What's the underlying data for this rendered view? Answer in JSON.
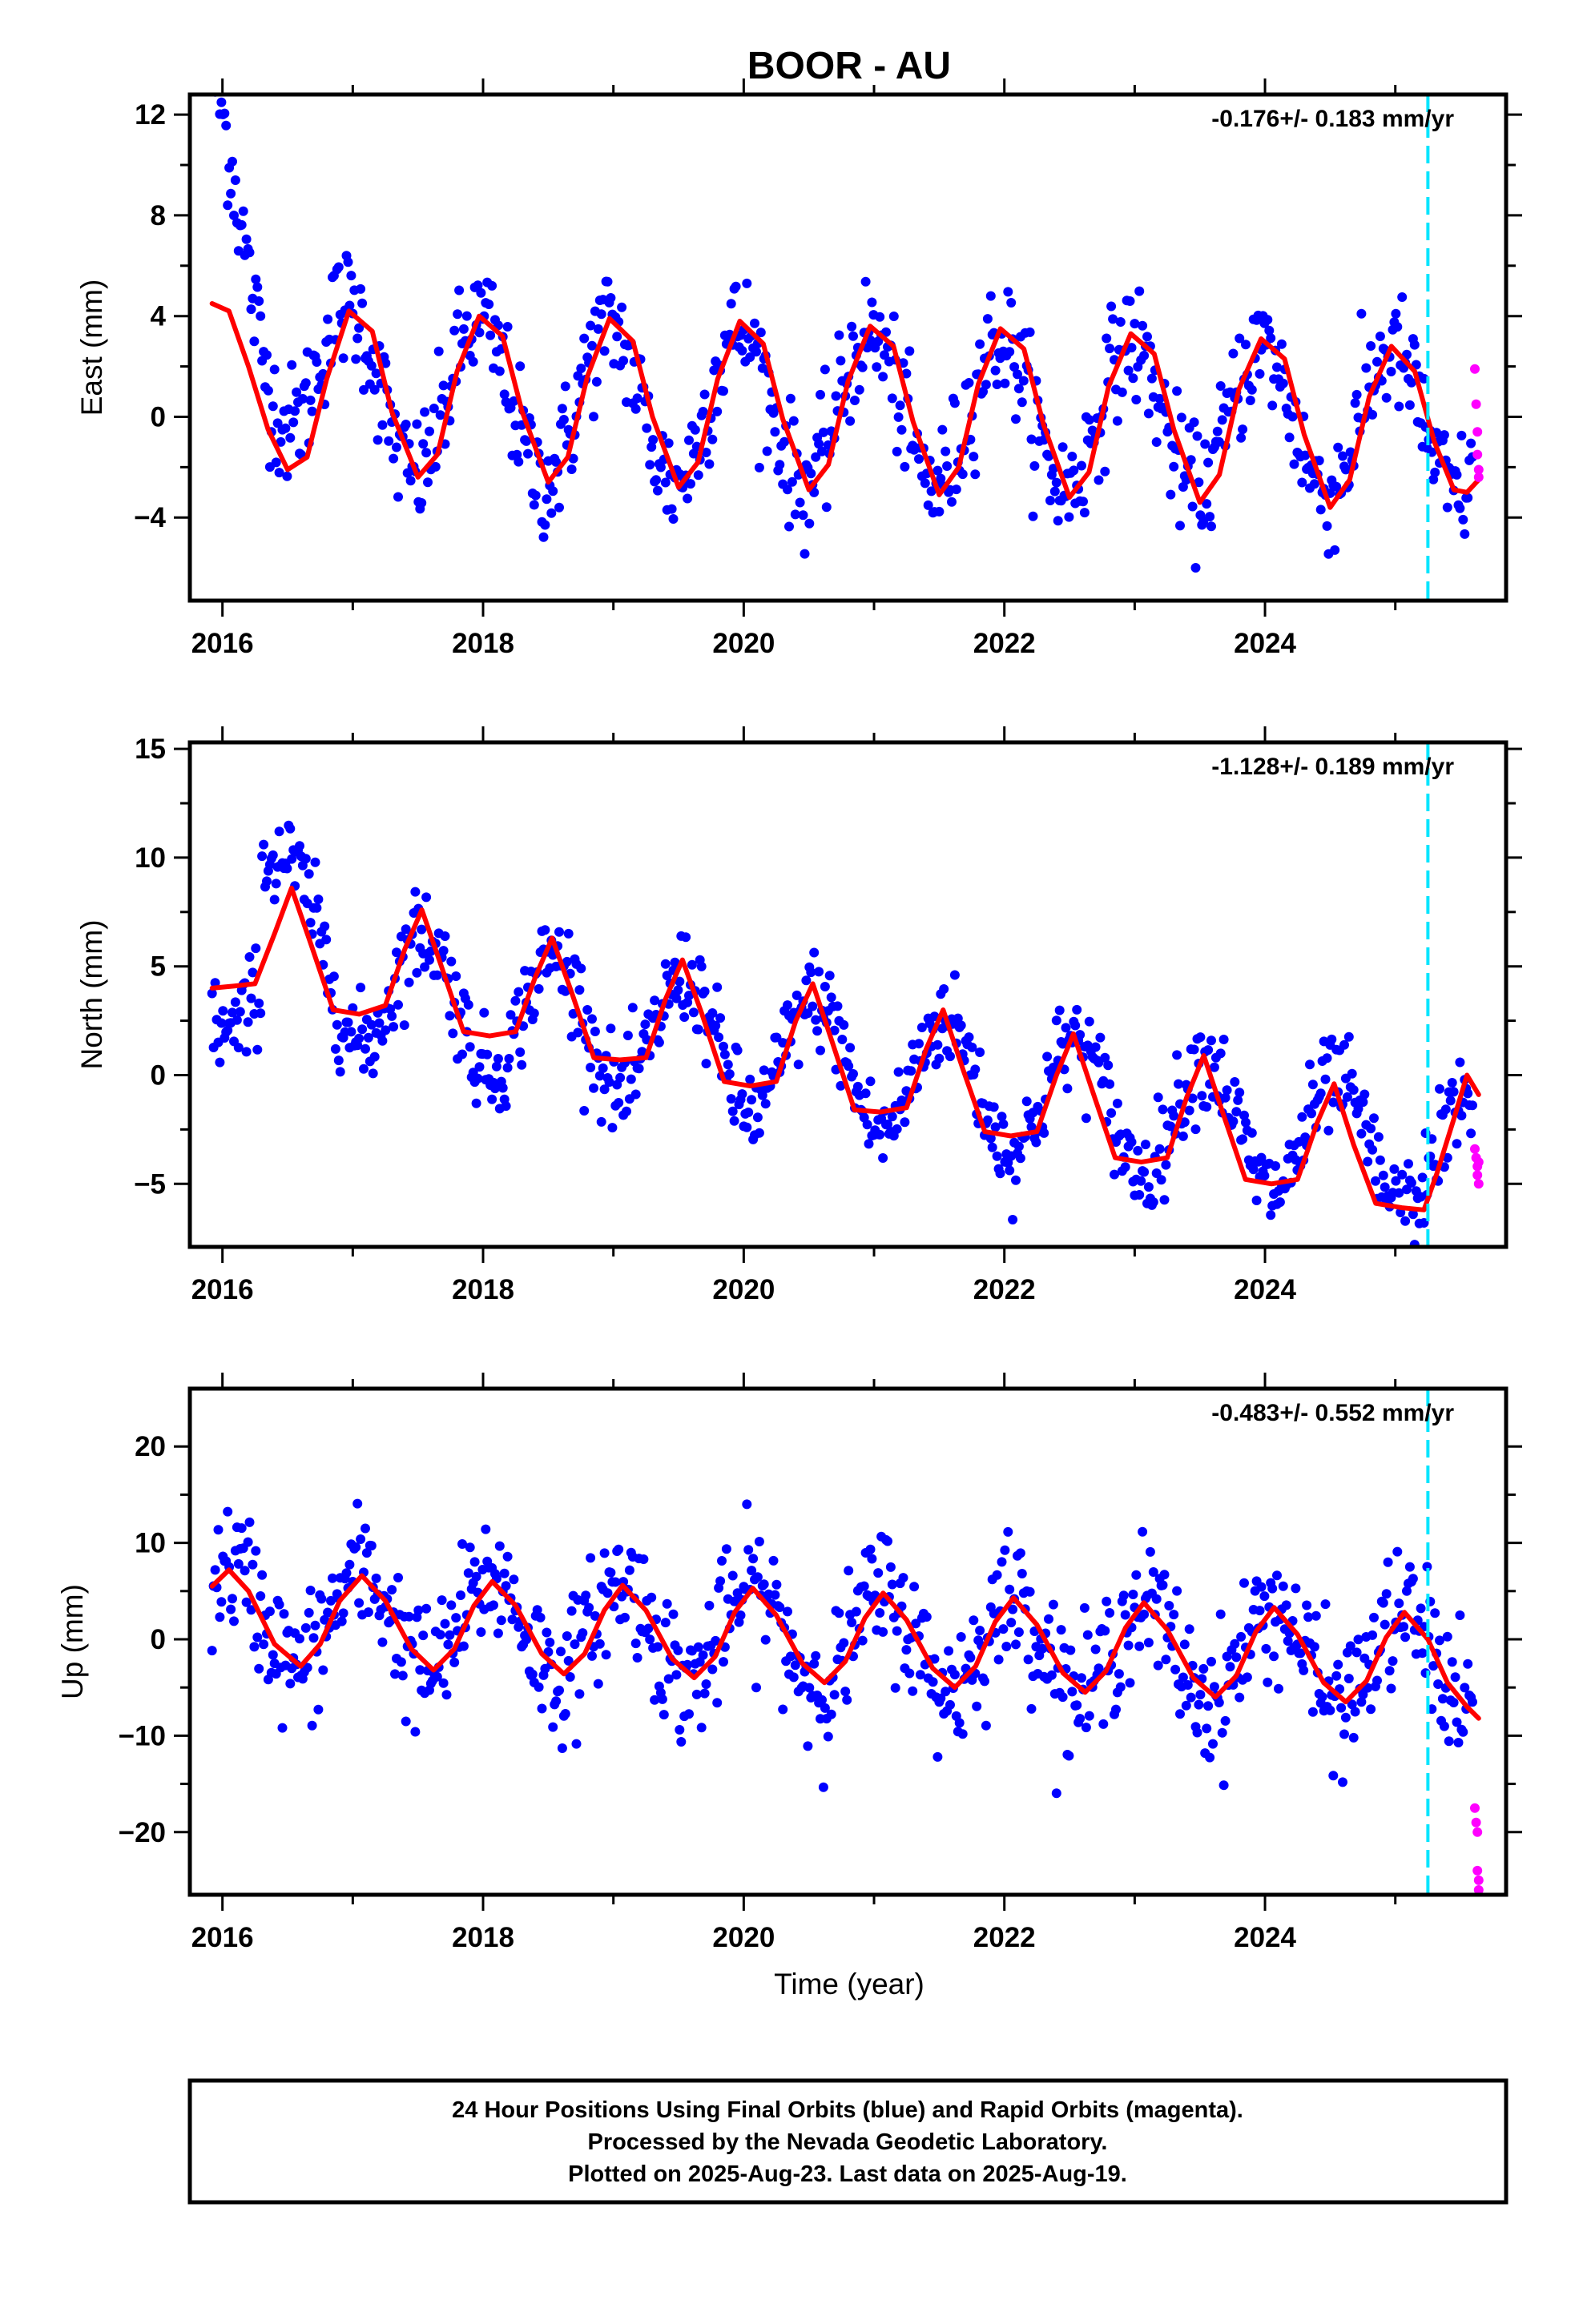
{
  "title": "BOOR - AU",
  "xlabel": "Time (year)",
  "footer": {
    "line1": "24 Hour Positions Using Final Orbits (blue) and Rapid Orbits (magenta).",
    "line2": "Processed by the Nevada Geodetic Laboratory.",
    "line3": "Plotted on 2025-Aug-23. Last data on 2025-Aug-19."
  },
  "colors": {
    "final_orbits": "#0000ff",
    "rapid_orbits": "#ff00ff",
    "model_fit": "#ff0000",
    "marker_line": "#00e5ff",
    "frame": "#000000"
  },
  "chart_data": [
    {
      "type": "scatter",
      "component": "East",
      "ylabel": "East (mm)",
      "rate_label": "-0.176+/- 0.183 mm/yr",
      "xlim": [
        2015.75,
        2025.85
      ],
      "ylim": [
        -7.3,
        12.8
      ],
      "xticks": [
        2016,
        2018,
        2020,
        2022,
        2024
      ],
      "yticks": [
        -4,
        0,
        4,
        8,
        12
      ],
      "grid": false,
      "vertical_marker_x": 2025.25,
      "series": [
        {
          "name": "Final Orbits",
          "seasonal": {
            "amp_start": 3.2,
            "amp_end": 2.8,
            "phase": 0.97,
            "offset_start": 0.9,
            "offset_end": -0.3,
            "noise": 1.2,
            "step": 0.012,
            "start": 2015.92,
            "end": 2025.6
          },
          "early_transient": {
            "start": 2015.92,
            "value": 10.0,
            "decay": 0.35
          }
        },
        {
          "name": "Rapid Orbits",
          "points": [
            [
              2025.61,
              1.9
            ],
            [
              2025.62,
              0.5
            ],
            [
              2025.63,
              -0.6
            ],
            [
              2025.63,
              -1.5
            ],
            [
              2025.64,
              -2.1
            ],
            [
              2025.64,
              -2.4
            ]
          ]
        },
        {
          "name": "Model Fit",
          "points": [
            [
              2015.92,
              4.5
            ],
            [
              2016.05,
              4.2
            ],
            [
              2016.2,
              2.0
            ],
            [
              2016.35,
              -0.5
            ],
            [
              2016.5,
              -2.1
            ],
            [
              2016.65,
              -1.6
            ],
            [
              2016.8,
              1.5
            ],
            [
              2016.97,
              4.2
            ],
            [
              2017.15,
              3.4
            ],
            [
              2017.3,
              0.2
            ],
            [
              2017.5,
              -2.4
            ],
            [
              2017.65,
              -1.5
            ],
            [
              2017.8,
              1.8
            ],
            [
              2017.97,
              4.0
            ],
            [
              2018.15,
              3.2
            ],
            [
              2018.3,
              0.2
            ],
            [
              2018.5,
              -2.6
            ],
            [
              2018.65,
              -1.6
            ],
            [
              2018.8,
              1.6
            ],
            [
              2018.97,
              3.9
            ],
            [
              2019.15,
              3.0
            ],
            [
              2019.3,
              0.0
            ],
            [
              2019.5,
              -2.8
            ],
            [
              2019.65,
              -1.8
            ],
            [
              2019.8,
              1.5
            ],
            [
              2019.97,
              3.8
            ],
            [
              2020.15,
              2.9
            ],
            [
              2020.3,
              -0.1
            ],
            [
              2020.5,
              -2.9
            ],
            [
              2020.65,
              -1.9
            ],
            [
              2020.8,
              1.4
            ],
            [
              2020.97,
              3.6
            ],
            [
              2021.15,
              2.8
            ],
            [
              2021.3,
              -0.2
            ],
            [
              2021.5,
              -3.1
            ],
            [
              2021.65,
              -2.0
            ],
            [
              2021.8,
              1.3
            ],
            [
              2021.97,
              3.5
            ],
            [
              2022.15,
              2.7
            ],
            [
              2022.3,
              -0.3
            ],
            [
              2022.5,
              -3.2
            ],
            [
              2022.65,
              -2.2
            ],
            [
              2022.8,
              1.2
            ],
            [
              2022.97,
              3.3
            ],
            [
              2023.15,
              2.5
            ],
            [
              2023.3,
              -0.5
            ],
            [
              2023.5,
              -3.4
            ],
            [
              2023.65,
              -2.3
            ],
            [
              2023.8,
              1.1
            ],
            [
              2023.97,
              3.1
            ],
            [
              2024.15,
              2.3
            ],
            [
              2024.3,
              -0.7
            ],
            [
              2024.5,
              -3.6
            ],
            [
              2024.65,
              -2.5
            ],
            [
              2024.8,
              0.8
            ],
            [
              2024.97,
              2.8
            ],
            [
              2025.15,
              1.8
            ],
            [
              2025.3,
              -1.0
            ],
            [
              2025.45,
              -2.9
            ],
            [
              2025.55,
              -3.0
            ],
            [
              2025.64,
              -2.5
            ]
          ]
        }
      ]
    },
    {
      "type": "scatter",
      "component": "North",
      "ylabel": "North (mm)",
      "rate_label": "-1.128+/- 0.189 mm/yr",
      "xlim": [
        2015.75,
        2025.85
      ],
      "ylim": [
        -7.9,
        15.3
      ],
      "xticks": [
        2016,
        2018,
        2020,
        2022,
        2024
      ],
      "yticks": [
        -5,
        0,
        5,
        10,
        15
      ],
      "grid": false,
      "vertical_marker_x": 2025.25,
      "series": [
        {
          "name": "Final Orbits",
          "seasonal": {
            "amp_start": 3.0,
            "amp_end": 2.7,
            "phase": 0.55,
            "offset_start": 5.0,
            "offset_end": -4.0,
            "noise": 1.1,
            "step": 0.012,
            "start": 2015.92,
            "end": 2025.6
          },
          "early_transient": {
            "start": 2016.3,
            "value": 5.0,
            "decay": 0.3
          }
        },
        {
          "name": "Rapid Orbits",
          "points": [
            [
              2025.61,
              -3.4
            ],
            [
              2025.62,
              -3.8
            ],
            [
              2025.63,
              -4.2
            ],
            [
              2025.63,
              -4.6
            ],
            [
              2025.64,
              -5.0
            ],
            [
              2025.64,
              -4.0
            ]
          ]
        },
        {
          "name": "Model Fit",
          "points": [
            [
              2015.92,
              4.0
            ],
            [
              2016.1,
              4.1
            ],
            [
              2016.25,
              4.2
            ],
            [
              2016.4,
              6.5
            ],
            [
              2016.53,
              8.6
            ],
            [
              2016.68,
              6.0
            ],
            [
              2016.85,
              3.0
            ],
            [
              2017.05,
              2.8
            ],
            [
              2017.25,
              3.2
            ],
            [
              2017.4,
              5.8
            ],
            [
              2017.53,
              7.6
            ],
            [
              2017.68,
              5.0
            ],
            [
              2017.85,
              2.0
            ],
            [
              2018.05,
              1.8
            ],
            [
              2018.25,
              2.0
            ],
            [
              2018.4,
              4.5
            ],
            [
              2018.53,
              6.3
            ],
            [
              2018.68,
              3.8
            ],
            [
              2018.85,
              0.8
            ],
            [
              2019.05,
              0.7
            ],
            [
              2019.25,
              0.8
            ],
            [
              2019.4,
              3.5
            ],
            [
              2019.53,
              5.3
            ],
            [
              2019.68,
              2.8
            ],
            [
              2019.85,
              -0.3
            ],
            [
              2020.05,
              -0.5
            ],
            [
              2020.25,
              -0.3
            ],
            [
              2020.4,
              2.5
            ],
            [
              2020.53,
              4.2
            ],
            [
              2020.68,
              1.5
            ],
            [
              2020.85,
              -1.6
            ],
            [
              2021.05,
              -1.7
            ],
            [
              2021.25,
              -1.5
            ],
            [
              2021.4,
              1.2
            ],
            [
              2021.53,
              3.0
            ],
            [
              2021.68,
              0.3
            ],
            [
              2021.85,
              -2.6
            ],
            [
              2022.05,
              -2.8
            ],
            [
              2022.25,
              -2.6
            ],
            [
              2022.4,
              0.0
            ],
            [
              2022.53,
              1.9
            ],
            [
              2022.68,
              -0.8
            ],
            [
              2022.85,
              -3.8
            ],
            [
              2023.05,
              -4.0
            ],
            [
              2023.25,
              -3.8
            ],
            [
              2023.4,
              -1.0
            ],
            [
              2023.53,
              0.9
            ],
            [
              2023.68,
              -1.8
            ],
            [
              2023.85,
              -4.8
            ],
            [
              2024.05,
              -5.0
            ],
            [
              2024.25,
              -4.8
            ],
            [
              2024.4,
              -2.2
            ],
            [
              2024.53,
              -0.4
            ],
            [
              2024.68,
              -3.2
            ],
            [
              2024.85,
              -5.9
            ],
            [
              2025.05,
              -6.1
            ],
            [
              2025.22,
              -6.2
            ],
            [
              2025.32,
              -4.5
            ],
            [
              2025.45,
              -2.0
            ],
            [
              2025.55,
              0.0
            ],
            [
              2025.64,
              -0.9
            ]
          ]
        }
      ]
    },
    {
      "type": "scatter",
      "component": "Up",
      "ylabel": "Up (mm)",
      "rate_label": "-0.483+/- 0.552 mm/yr",
      "xlim": [
        2015.75,
        2025.85
      ],
      "ylim": [
        -26.5,
        26.0
      ],
      "xticks": [
        2016,
        2018,
        2020,
        2022,
        2024
      ],
      "yticks": [
        -20,
        -10,
        0,
        10,
        20
      ],
      "grid": false,
      "vertical_marker_x": 2025.25,
      "series": [
        {
          "name": "Final Orbits",
          "seasonal": {
            "amp_start": 5.0,
            "amp_end": 4.8,
            "phase": 0.07,
            "offset_start": 2.5,
            "offset_end": -2.5,
            "noise": 3.4,
            "step": 0.012,
            "start": 2015.92,
            "end": 2025.6
          },
          "early_transient": {
            "start": 2016.0,
            "value": 0.0,
            "decay": 1.0
          }
        },
        {
          "name": "Rapid Orbits",
          "points": [
            [
              2025.61,
              -17.5
            ],
            [
              2025.62,
              -19.0
            ],
            [
              2025.63,
              -20.0
            ],
            [
              2025.63,
              -24.0
            ],
            [
              2025.64,
              -25.0
            ],
            [
              2025.64,
              -26.0
            ]
          ]
        },
        {
          "name": "Model Fit",
          "points": [
            [
              2015.92,
              5.5
            ],
            [
              2016.05,
              7.2
            ],
            [
              2016.2,
              5.0
            ],
            [
              2016.4,
              -0.5
            ],
            [
              2016.6,
              -2.8
            ],
            [
              2016.75,
              -0.5
            ],
            [
              2016.9,
              4.0
            ],
            [
              2017.07,
              6.6
            ],
            [
              2017.25,
              4.0
            ],
            [
              2017.45,
              -1.0
            ],
            [
              2017.62,
              -3.2
            ],
            [
              2017.78,
              -1.0
            ],
            [
              2017.93,
              3.5
            ],
            [
              2018.07,
              6.0
            ],
            [
              2018.25,
              3.5
            ],
            [
              2018.45,
              -1.5
            ],
            [
              2018.62,
              -3.6
            ],
            [
              2018.78,
              -1.5
            ],
            [
              2018.93,
              3.0
            ],
            [
              2019.07,
              5.6
            ],
            [
              2019.25,
              3.0
            ],
            [
              2019.45,
              -2.0
            ],
            [
              2019.62,
              -4.0
            ],
            [
              2019.78,
              -1.8
            ],
            [
              2019.93,
              2.8
            ],
            [
              2020.07,
              5.3
            ],
            [
              2020.25,
              2.5
            ],
            [
              2020.45,
              -2.5
            ],
            [
              2020.62,
              -4.5
            ],
            [
              2020.78,
              -2.3
            ],
            [
              2020.93,
              2.2
            ],
            [
              2021.07,
              4.8
            ],
            [
              2021.25,
              2.0
            ],
            [
              2021.45,
              -3.0
            ],
            [
              2021.62,
              -5.0
            ],
            [
              2021.78,
              -2.8
            ],
            [
              2021.93,
              1.8
            ],
            [
              2022.07,
              4.3
            ],
            [
              2022.25,
              1.5
            ],
            [
              2022.45,
              -3.5
            ],
            [
              2022.62,
              -5.5
            ],
            [
              2022.78,
              -3.3
            ],
            [
              2022.93,
              1.2
            ],
            [
              2023.07,
              3.8
            ],
            [
              2023.25,
              1.0
            ],
            [
              2023.45,
              -4.0
            ],
            [
              2023.62,
              -6.0
            ],
            [
              2023.78,
              -3.8
            ],
            [
              2023.93,
              0.8
            ],
            [
              2024.07,
              3.3
            ],
            [
              2024.25,
              0.5
            ],
            [
              2024.45,
              -4.5
            ],
            [
              2024.62,
              -6.5
            ],
            [
              2024.78,
              -4.3
            ],
            [
              2024.93,
              0.2
            ],
            [
              2025.07,
              2.8
            ],
            [
              2025.25,
              0.0
            ],
            [
              2025.4,
              -4.5
            ],
            [
              2025.55,
              -7.0
            ],
            [
              2025.64,
              -8.2
            ]
          ]
        }
      ]
    }
  ]
}
